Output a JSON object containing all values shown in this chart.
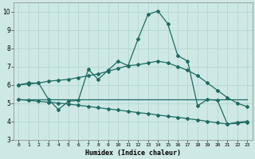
{
  "xlabel": "Humidex (Indice chaleur)",
  "bg_color": "#cde8e5",
  "grid_color": "#aed4d0",
  "line_color": "#1e6b62",
  "xlim": [
    -0.5,
    23.5
  ],
  "ylim": [
    3,
    10.5
  ],
  "xticks": [
    0,
    1,
    2,
    3,
    4,
    5,
    6,
    7,
    8,
    9,
    10,
    11,
    12,
    13,
    14,
    15,
    16,
    17,
    18,
    19,
    20,
    21,
    22,
    23
  ],
  "yticks": [
    3,
    4,
    5,
    6,
    7,
    8,
    9,
    10
  ],
  "s1_x": [
    0,
    1,
    2,
    3,
    4,
    5,
    6,
    7,
    8,
    9,
    10,
    11,
    12,
    13,
    14,
    15,
    16,
    17,
    18,
    19,
    20,
    21,
    22,
    23
  ],
  "s1_y": [
    6.0,
    6.1,
    6.1,
    5.2,
    4.65,
    5.1,
    5.15,
    6.85,
    6.3,
    6.8,
    7.3,
    7.05,
    8.5,
    9.85,
    10.05,
    9.35,
    7.6,
    7.3,
    4.85,
    5.2,
    5.15,
    3.85,
    3.95,
    4.0
  ],
  "s2_x": [
    0,
    1,
    2,
    3,
    4,
    5,
    6,
    7,
    8,
    9,
    10,
    11,
    12,
    13,
    14,
    15,
    16,
    17,
    18,
    19,
    20,
    21,
    22,
    23
  ],
  "s2_y": [
    6.0,
    6.05,
    6.1,
    6.2,
    6.25,
    6.3,
    6.4,
    6.5,
    6.6,
    6.75,
    6.9,
    7.05,
    7.1,
    7.2,
    7.3,
    7.2,
    7.0,
    6.8,
    6.5,
    6.1,
    5.7,
    5.3,
    5.0,
    4.8
  ],
  "s3_x": [
    0,
    1,
    2,
    3,
    4,
    5,
    6,
    7,
    8,
    9,
    10,
    11,
    12,
    13,
    14,
    15,
    16,
    17,
    18,
    19,
    20,
    21,
    22,
    23
  ],
  "s3_y": [
    5.2,
    5.2,
    5.2,
    5.2,
    5.2,
    5.2,
    5.2,
    5.2,
    5.2,
    5.2,
    5.2,
    5.2,
    5.2,
    5.2,
    5.2,
    5.2,
    5.2,
    5.2,
    5.2,
    5.2,
    5.2,
    5.2,
    5.2,
    5.2
  ],
  "s4_x": [
    0,
    1,
    2,
    3,
    4,
    5,
    6,
    7,
    8,
    9,
    10,
    11,
    12,
    13,
    14,
    15,
    16,
    17,
    18,
    19,
    20,
    21,
    22,
    23
  ],
  "s4_y": [
    5.2,
    5.15,
    5.1,
    5.05,
    5.0,
    4.95,
    4.88,
    4.82,
    4.75,
    4.68,
    4.62,
    4.55,
    4.48,
    4.42,
    4.35,
    4.28,
    4.22,
    4.15,
    4.08,
    4.0,
    3.92,
    3.85,
    3.9,
    3.95
  ]
}
